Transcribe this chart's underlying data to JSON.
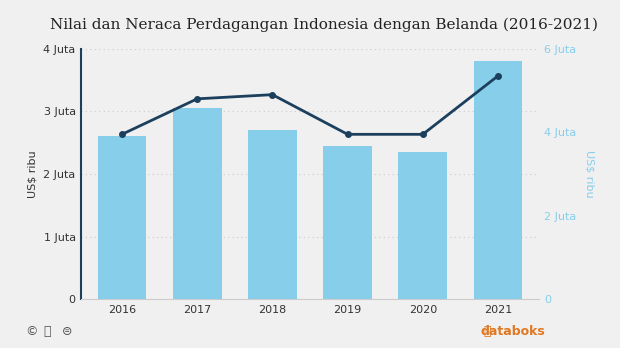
{
  "title": "Nilai dan Neraca Perdagangan Indonesia dengan Belanda (2016-2021)",
  "years": [
    2016,
    2017,
    2018,
    2019,
    2020,
    2021
  ],
  "bar_values": [
    2600,
    3050,
    2700,
    2450,
    2350,
    3800
  ],
  "line_values": [
    3950,
    4800,
    4900,
    3950,
    3950,
    5350
  ],
  "bar_color": "#87CEEB",
  "line_color": "#1C3F5E",
  "left_ylabel": "US$ ribu",
  "right_ylabel": "US$ ribu",
  "left_ylim": [
    0,
    4000
  ],
  "right_ylim": [
    0,
    6000
  ],
  "left_yticks": [
    0,
    1000,
    2000,
    3000,
    4000
  ],
  "left_yticklabels": [
    "0",
    "1 Juta",
    "2 Juta",
    "3 Juta",
    "4 Juta"
  ],
  "right_yticks": [
    0,
    2000,
    4000,
    6000
  ],
  "right_yticklabels": [
    "0",
    "2 Juta",
    "4 Juta",
    "6 Juta"
  ],
  "bg_color": "#f0f0f0",
  "plot_bg_color": "#f0f0f0",
  "grid_color": "#cccccc",
  "title_fontsize": 11,
  "axis_fontsize": 8,
  "tick_fontsize": 8,
  "bar_width": 0.65,
  "line_width": 2.0,
  "marker": "o",
  "marker_size": 4,
  "databoks_color": "#e07820",
  "left_spine_color": "#1C3F5E",
  "bottom_spine_color": "#cccccc"
}
